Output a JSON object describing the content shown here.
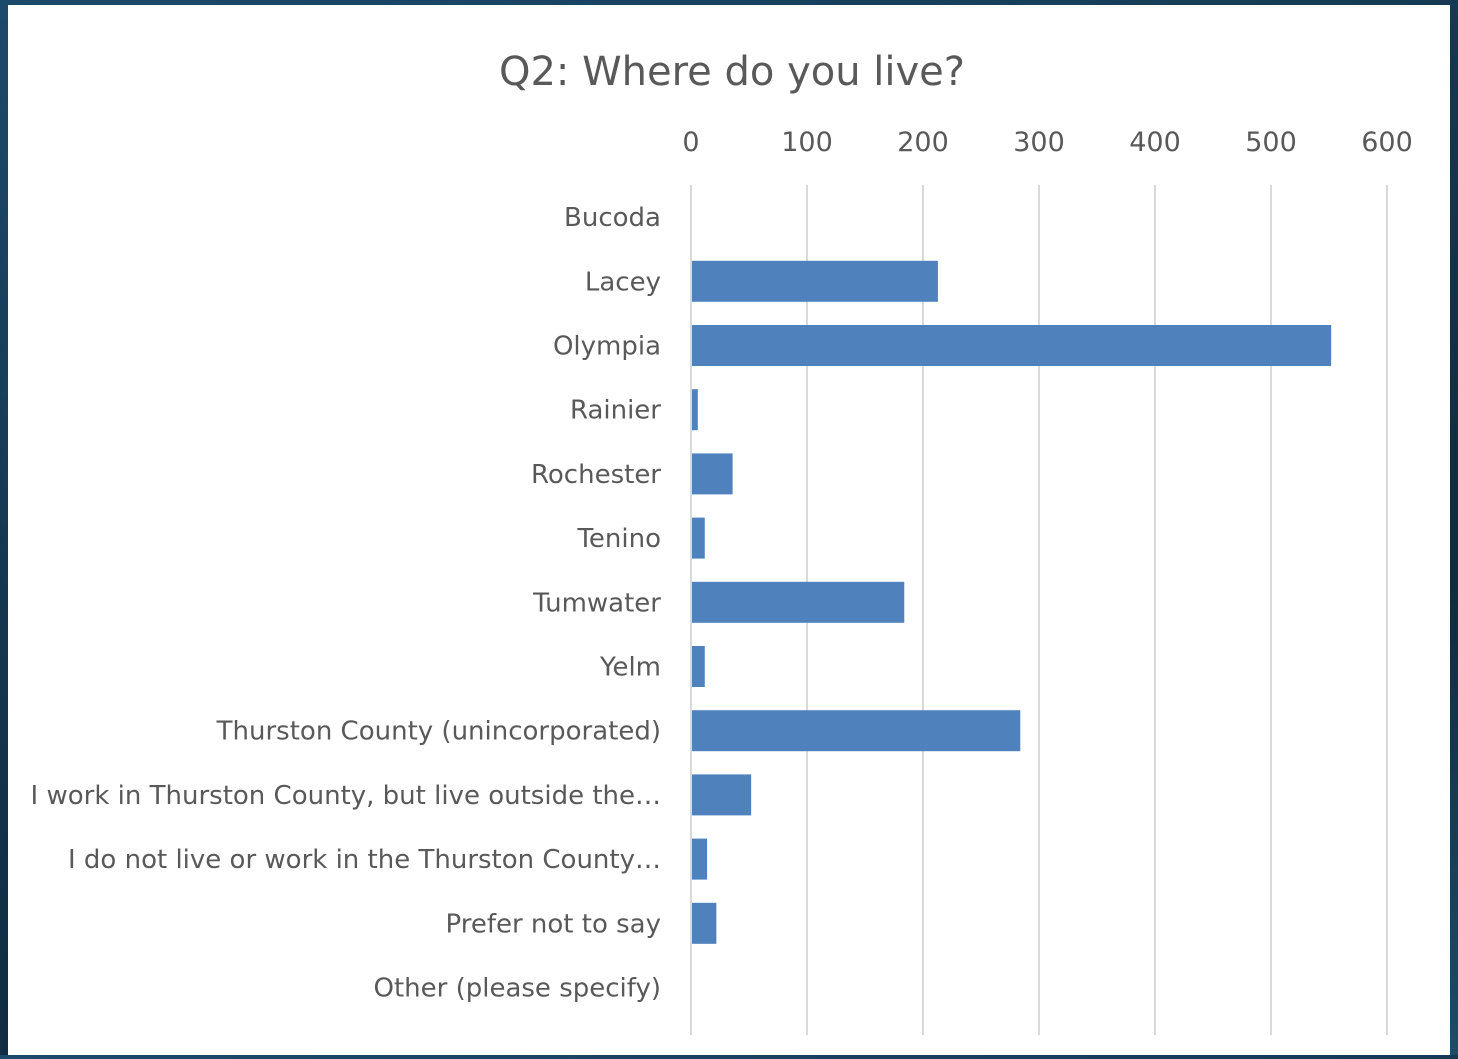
{
  "chart_data": {
    "type": "bar",
    "orientation": "horizontal",
    "title": "Q2: Where do you live?",
    "xlabel": "",
    "ylabel": "",
    "xlim": [
      0,
      600
    ],
    "x_ticks": [
      0,
      100,
      200,
      300,
      400,
      500,
      600
    ],
    "x_axis_position": "top",
    "grid": true,
    "legend": "none",
    "categories": [
      "Bucoda",
      "Lacey",
      "Olympia",
      "Rainier",
      "Rochester",
      "Tenino",
      "Tumwater",
      "Yelm",
      "Thurston County (unincorporated)",
      "I work in Thurston County, but live outside the…",
      "I do not live or work in the Thurston County…",
      "Prefer not to say",
      "Other (please specify)"
    ],
    "values": [
      0,
      212,
      551,
      5,
      35,
      11,
      183,
      11,
      283,
      51,
      13,
      21,
      0
    ],
    "colors": {
      "bar": "#4f81bd",
      "grid": "#d9d9d9",
      "text": "#595959"
    }
  }
}
